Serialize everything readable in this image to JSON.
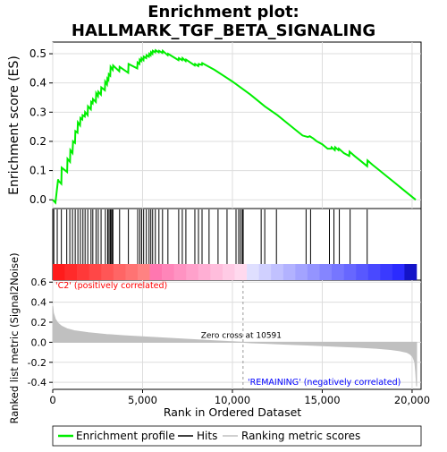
{
  "chart_data": {
    "type": "line",
    "title_line1": "Enrichment plot:",
    "title_line2": "HALLMARK_TGF_BETA_SIGNALING",
    "es_panel": {
      "ylabel": "Enrichment score (ES)",
      "ylim": [
        -0.03,
        0.54
      ],
      "yticks": [
        "0.0",
        "0.1",
        "0.2",
        "0.3",
        "0.4",
        "0.5"
      ],
      "ytick_values": [
        0.0,
        0.1,
        0.2,
        0.3,
        0.4,
        0.5
      ],
      "series": [
        {
          "name": "Enrichment profile",
          "color": "#00ee00",
          "x": [
            0,
            150,
            300,
            320,
            480,
            500,
            800,
            820,
            960,
            980,
            1100,
            1130,
            1240,
            1260,
            1380,
            1400,
            1520,
            1540,
            1640,
            1660,
            1780,
            1800,
            1940,
            1960,
            2120,
            2140,
            2220,
            2240,
            2400,
            2420,
            2520,
            2540,
            2680,
            2700,
            2900,
            2920,
            3020,
            3040,
            3100,
            3120,
            3200,
            3220,
            3340,
            3360,
            3700,
            3720,
            4200,
            4220,
            4700,
            4720,
            4820,
            4840,
            4920,
            4940,
            5050,
            5070,
            5200,
            5220,
            5350,
            5370,
            5450,
            5470,
            5550,
            5570,
            5700,
            5720,
            5900,
            5920,
            6100,
            6120,
            6400,
            6420,
            7000,
            7020,
            7200,
            7220,
            7400,
            7420,
            7900,
            7920,
            8100,
            8120,
            8300,
            8320,
            9000,
            10000,
            11000,
            11800,
            12500,
            13200,
            13900,
            14200,
            14300,
            14500,
            14700,
            15000,
            15300,
            15500,
            15520,
            15700,
            15720,
            15900,
            15920,
            16200,
            16500,
            16520,
            16800,
            17100,
            17500,
            17520,
            17800,
            18200,
            18600,
            19000,
            19400,
            19800,
            20200
          ],
          "y": [
            0.0,
            -0.01,
            0.07,
            0.065,
            0.055,
            0.11,
            0.095,
            0.14,
            0.13,
            0.17,
            0.16,
            0.2,
            0.195,
            0.235,
            0.23,
            0.265,
            0.255,
            0.28,
            0.275,
            0.29,
            0.285,
            0.3,
            0.29,
            0.32,
            0.31,
            0.335,
            0.33,
            0.345,
            0.335,
            0.365,
            0.355,
            0.37,
            0.36,
            0.385,
            0.375,
            0.405,
            0.395,
            0.415,
            0.41,
            0.43,
            0.425,
            0.455,
            0.445,
            0.46,
            0.44,
            0.455,
            0.435,
            0.465,
            0.45,
            0.47,
            0.465,
            0.48,
            0.475,
            0.485,
            0.478,
            0.49,
            0.485,
            0.495,
            0.49,
            0.5,
            0.495,
            0.505,
            0.5,
            0.51,
            0.505,
            0.512,
            0.505,
            0.51,
            0.503,
            0.51,
            0.495,
            0.5,
            0.478,
            0.485,
            0.478,
            0.485,
            0.475,
            0.48,
            0.46,
            0.465,
            0.458,
            0.465,
            0.462,
            0.468,
            0.445,
            0.405,
            0.36,
            0.32,
            0.29,
            0.255,
            0.22,
            0.215,
            0.218,
            0.21,
            0.2,
            0.19,
            0.175,
            0.175,
            0.18,
            0.17,
            0.18,
            0.17,
            0.175,
            0.16,
            0.15,
            0.165,
            0.15,
            0.135,
            0.115,
            0.135,
            0.12,
            0.1,
            0.08,
            0.06,
            0.04,
            0.02,
            0.0
          ]
        }
      ]
    },
    "hits_panel": {
      "hit_ranks": [
        60,
        250,
        480,
        780,
        950,
        1100,
        1250,
        1400,
        1540,
        1680,
        1800,
        1950,
        2130,
        2230,
        2410,
        2530,
        2690,
        2930,
        3060,
        3130,
        3200,
        3240,
        3300,
        3350,
        3720,
        4210,
        4730,
        4850,
        4950,
        5060,
        5210,
        5360,
        5460,
        5560,
        5710,
        5910,
        6110,
        6410,
        7010,
        7210,
        7410,
        7910,
        8110,
        8310,
        8700,
        9200,
        9700,
        10200,
        10350,
        10450,
        10550,
        10600,
        11600,
        11800,
        12450,
        14100,
        14350,
        15400,
        15650,
        15950,
        16550,
        17500
      ]
    },
    "metric_panel": {
      "ylabel": "Ranked list metric (Signal2Noise)",
      "ylim": [
        -0.47,
        0.62
      ],
      "yticks": [
        "0.6",
        "0.4",
        "0.2",
        "0.0",
        "-0.2",
        "-0.4"
      ],
      "ytick_values": [
        0.6,
        0.4,
        0.2,
        0.0,
        -0.2,
        -0.4
      ],
      "x": [
        0,
        40,
        150,
        300,
        500,
        800,
        1200,
        2000,
        3000,
        4000,
        5000,
        6000,
        7000,
        8000,
        9000,
        10000,
        10591,
        11000,
        12000,
        13000,
        14000,
        15000,
        16000,
        17000,
        18000,
        18800,
        19300,
        19700,
        19900,
        20050,
        20150,
        20200,
        20250
      ],
      "y": [
        0.36,
        0.29,
        0.23,
        0.19,
        0.16,
        0.135,
        0.115,
        0.095,
        0.078,
        0.065,
        0.055,
        0.045,
        0.035,
        0.025,
        0.015,
        0.005,
        0.0,
        -0.005,
        -0.013,
        -0.02,
        -0.027,
        -0.034,
        -0.042,
        -0.05,
        -0.06,
        -0.072,
        -0.085,
        -0.1,
        -0.12,
        -0.15,
        -0.2,
        -0.3,
        -0.44
      ],
      "pos_label": "'C2' (positively correlated)",
      "neg_label": "'REMAINING' (negatively correlated)",
      "zero_cross_label": "Zero cross at 10591",
      "zero_cross": 10591
    },
    "xaxis": {
      "xlabel": "Rank in Ordered Dataset",
      "xlim": [
        0,
        20500
      ],
      "xticks": [
        "0",
        "5,000",
        "10,000",
        "15,000",
        "20,000"
      ],
      "xtick_values": [
        0,
        5000,
        10000,
        15000,
        20000
      ],
      "n_genes": 20250
    },
    "legend": {
      "items": [
        {
          "label": "Enrichment profile",
          "color": "#00ee00"
        },
        {
          "label": "Hits",
          "color": "#000000"
        },
        {
          "label": "Ranking metric scores",
          "color": "#c0c0c0"
        }
      ]
    },
    "colors": {
      "es_line": "#00ee00",
      "metric_fill": "#c0c0c0",
      "pos_text": "#ff0000",
      "neg_text": "#0000ff",
      "grid": "#dddddd"
    }
  }
}
